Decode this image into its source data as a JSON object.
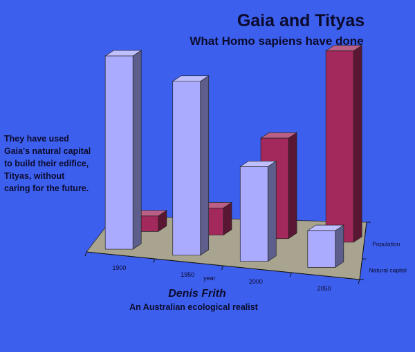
{
  "title": "Gaia and Tityas",
  "subtitle": "What Homo sapiens have done",
  "side_note": {
    "lines": [
      "They have used",
      "Gaia's natural capital",
      "to build their edifice,",
      "Tityas, without",
      "caring for the future."
    ]
  },
  "author": "Denis Frith",
  "tagline": "An Australian ecological realist",
  "chart_data": {
    "type": "bar",
    "variant": "3d-clustered-depth",
    "title": "Gaia and Tityas",
    "subtitle": "What Homo sapiens have done",
    "xlabel": "year",
    "ylabel": "",
    "categories": [
      "1900",
      "1950",
      "2000",
      "2050"
    ],
    "series": [
      {
        "name": "Natural capital",
        "color": "#aaaaff",
        "values": [
          100,
          90,
          49,
          19
        ]
      },
      {
        "name": "Population",
        "color": "#a3295c",
        "values": [
          8,
          14,
          52,
          99
        ]
      }
    ],
    "ylim": [
      0,
      100
    ],
    "grid": false,
    "floor_color": "#a9a48f"
  }
}
